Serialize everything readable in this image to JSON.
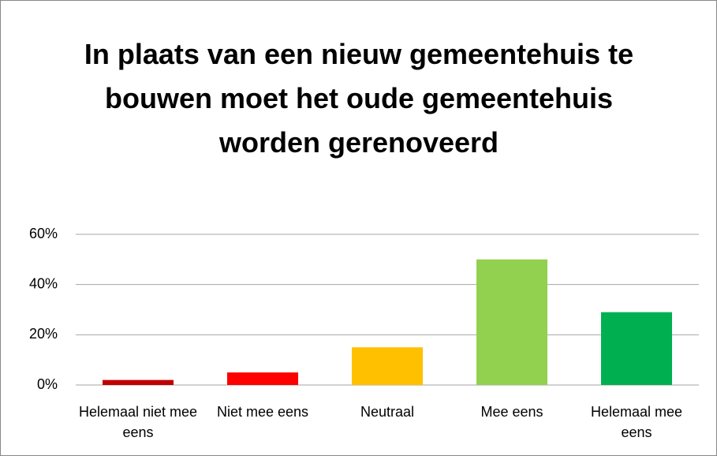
{
  "chart_data": {
    "type": "bar",
    "title": "In plaats van een nieuw gemeentehuis te bouwen moet het oude gemeentehuis worden gerenoveerd",
    "categories": [
      "Helemaal niet mee eens",
      "Niet mee eens",
      "Neutraal",
      "Mee eens",
      "Helemaal mee eens"
    ],
    "values": [
      2,
      5,
      15,
      50,
      29
    ],
    "colors": [
      "#c00000",
      "#ff0000",
      "#ffc000",
      "#92d050",
      "#00b050"
    ],
    "ylim": [
      0,
      60
    ],
    "yticks": [
      {
        "value": 0,
        "label": "0%"
      },
      {
        "value": 20,
        "label": "20%"
      },
      {
        "value": 40,
        "label": "40%"
      },
      {
        "value": 60,
        "label": "60%"
      }
    ],
    "grid": true
  }
}
